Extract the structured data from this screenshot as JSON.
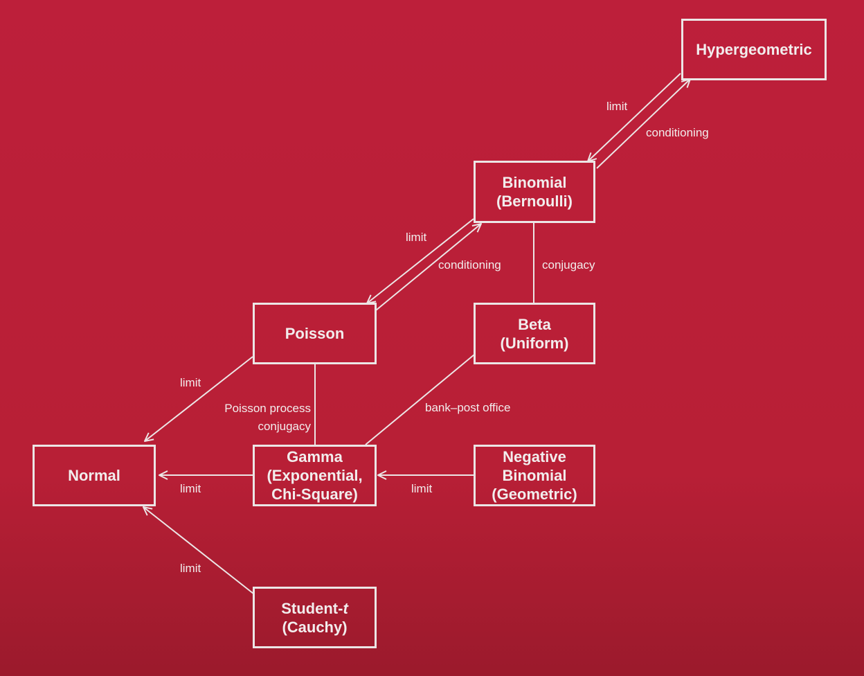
{
  "colors": {
    "background": "#bd1f3a",
    "stroke": "#ece6e6",
    "text": "#f2eded"
  },
  "nodes": {
    "hypergeometric": {
      "line1": "Hypergeometric"
    },
    "binomial": {
      "line1": "Binomial",
      "line2": "(Bernoulli)"
    },
    "poisson": {
      "line1": "Poisson"
    },
    "beta": {
      "line1": "Beta",
      "line2": "(Uniform)"
    },
    "normal": {
      "line1": "Normal"
    },
    "gamma": {
      "line1": "Gamma",
      "line2": "(Exponential,",
      "line3": "Chi-Square)"
    },
    "negative_binomial": {
      "line1": "Negative",
      "line2": "Binomial",
      "line3": "(Geometric)"
    },
    "student_t": {
      "line1_prefix": "Student-",
      "line1_italic": "t",
      "line2": "(Cauchy)"
    }
  },
  "edges": {
    "binomial_hyper_limit": "limit",
    "binomial_hyper_conditioning": "conditioning",
    "poisson_binomial_limit": "limit",
    "poisson_binomial_conditioning": "conditioning",
    "binomial_beta_conjugacy": "conjugacy",
    "poisson_normal_limit": "limit",
    "poisson_gamma_process": "Poisson process",
    "poisson_gamma_conjugacy": "conjugacy",
    "beta_gamma_bank": "bank–post office",
    "gamma_normal_limit": "limit",
    "negbin_gamma_limit": "limit",
    "student_normal_limit": "limit"
  }
}
